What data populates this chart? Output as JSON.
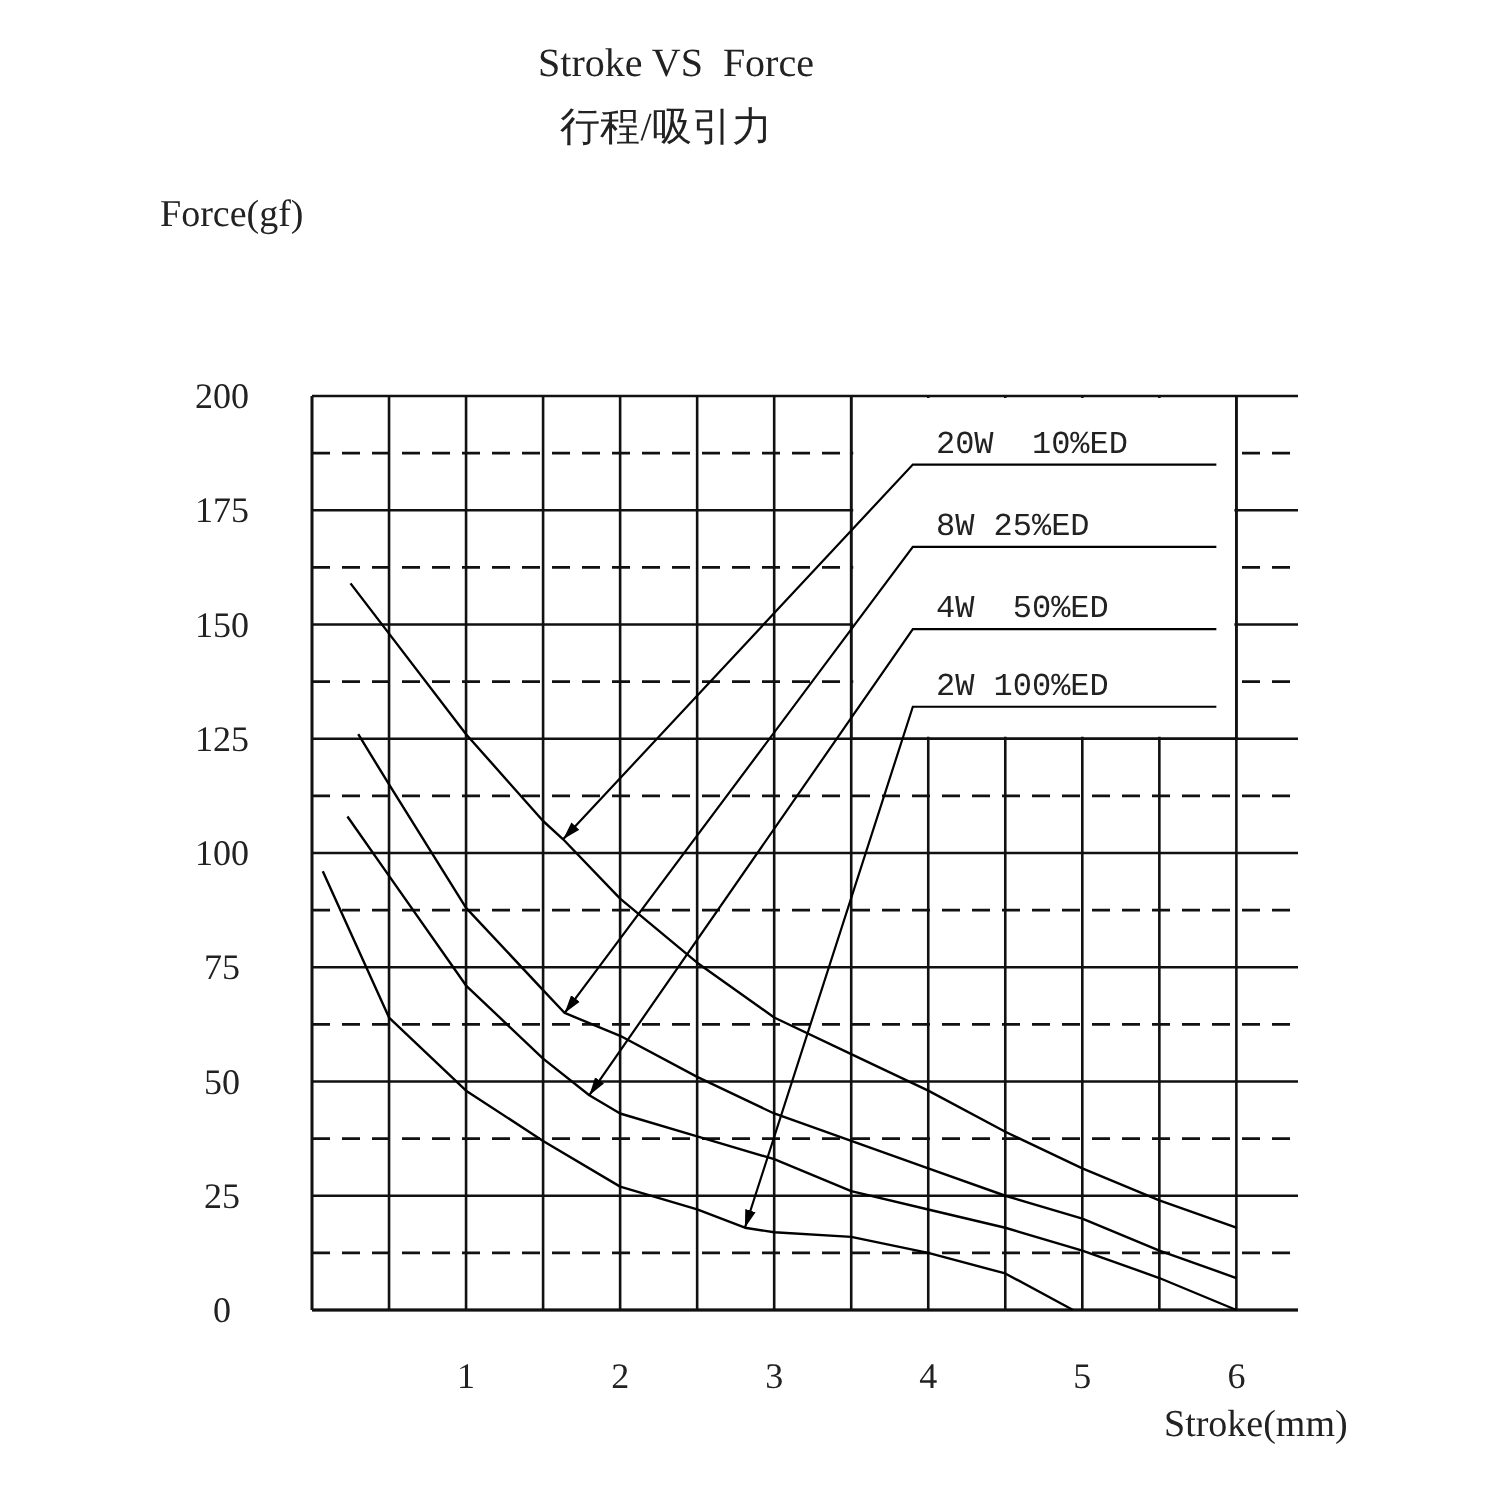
{
  "chart_data": {
    "type": "line",
    "title": "Stroke VS  Force",
    "subtitle": "行程/吸引力",
    "xlabel": "Stroke(mm)",
    "ylabel": "Force(gf)",
    "xlim": [
      0,
      6.4
    ],
    "ylim": [
      0,
      200
    ],
    "xticks": [
      {
        "value": 0.5,
        "label": null
      },
      1,
      {
        "value": 1.5,
        "label": null
      },
      2,
      {
        "value": 2.5,
        "label": null
      },
      3,
      {
        "value": 3.5,
        "label": null
      },
      4,
      {
        "value": 4.5,
        "label": null
      },
      5,
      {
        "value": 5.5,
        "label": null
      },
      6
    ],
    "yticks": [
      0,
      {
        "value": 12.5,
        "label": null
      },
      25,
      {
        "value": 37.5,
        "label": null
      },
      50,
      {
        "value": 62.5,
        "label": null
      },
      75,
      {
        "value": 87.5,
        "label": null
      },
      100,
      {
        "value": 112.5,
        "label": null
      },
      125,
      {
        "value": 137.5,
        "label": null
      },
      150,
      {
        "value": 162.5,
        "label": null
      },
      175,
      {
        "value": 187.5,
        "label": null
      },
      200
    ],
    "grid": true,
    "legend": "top right",
    "marker": "none",
    "line_style": "solid",
    "series": [
      {
        "name": "20W  10%ED",
        "color": "#000000",
        "x": [
          0.25,
          0.5,
          1,
          1.5,
          1.63,
          2,
          2.5,
          3,
          3.5,
          4,
          4.5,
          5,
          5.5,
          6
        ],
        "values": [
          159,
          148,
          126,
          107,
          103,
          90,
          76,
          64,
          56,
          48,
          39,
          31,
          24,
          18
        ]
      },
      {
        "name": "8W 25%ED",
        "color": "#000000",
        "x": [
          0.3,
          0.5,
          1,
          1.5,
          1.64,
          2,
          2.5,
          3,
          3.5,
          4,
          4.5,
          5,
          5.5,
          6
        ],
        "values": [
          126,
          115,
          88,
          70,
          65,
          60,
          51,
          43,
          37,
          31,
          25,
          20,
          13,
          7
        ]
      },
      {
        "name": "4W  50%ED",
        "color": "#000000",
        "x": [
          0.23,
          0.5,
          1,
          1.5,
          1.8,
          2,
          2.5,
          3,
          3.5,
          4,
          4.5,
          5,
          5.5,
          6
        ],
        "values": [
          108,
          95,
          71,
          55,
          47,
          43,
          38,
          33,
          26,
          22,
          18,
          13,
          7,
          0
        ]
      },
      {
        "name": "2W 100%ED",
        "color": "#000000",
        "x": [
          0.07,
          0.5,
          1,
          1.5,
          2,
          2.5,
          2.81,
          3,
          3.5,
          4,
          4.5,
          4.94
        ],
        "values": [
          96,
          64,
          48,
          37,
          27,
          22,
          18,
          17,
          16,
          12.5,
          8,
          0
        ]
      }
    ]
  }
}
